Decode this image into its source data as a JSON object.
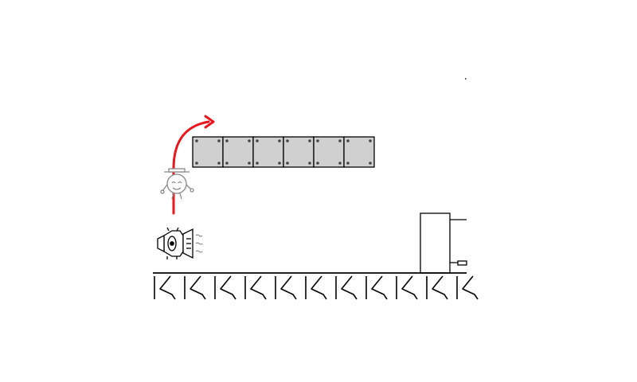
{
  "scene": {
    "type": "platformer-tutorial",
    "background_color": "#ffffff",
    "line_color": "#000000",
    "block_fill": "#d0d0d0",
    "arrow_color": "#e8181f",
    "block_count": 6,
    "ground_segment_count": 11
  },
  "icons": {
    "player_jumping": "player-jumping-icon",
    "speaker_enemy": "speaker-robot-icon",
    "door": "exit-door-icon"
  }
}
